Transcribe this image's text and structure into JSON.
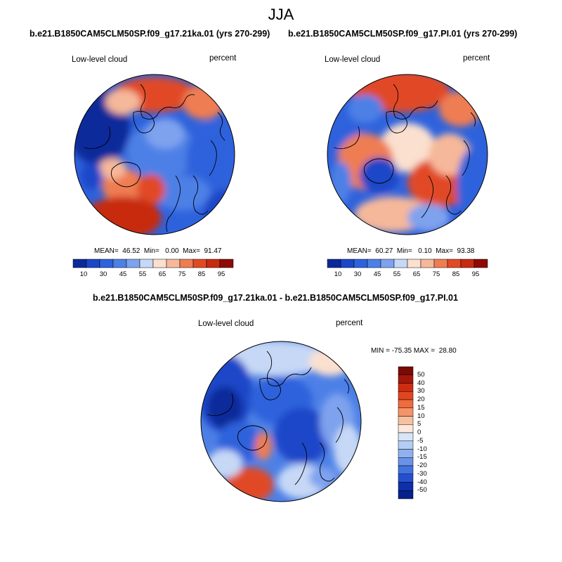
{
  "figure": {
    "season": "JJA",
    "colors": {
      "c10": "#0b2a9a",
      "c20": "#1c46c8",
      "c30": "#2e62dc",
      "c40": "#4d80e6",
      "c50": "#7ea2ee",
      "c55": "#c6d8f6",
      "c60": "#fbe0cf",
      "c70": "#f6b89a",
      "c80": "#ef7d52",
      "c85": "#e14a25",
      "c90": "#c72b10",
      "c95": "#8d0b04"
    }
  },
  "panels": [
    {
      "title": "b.e21.B1850CAM5CLM50SP.f09_g17.21ka.01 (yrs 270-299)",
      "left_label": "Low-level cloud",
      "right_label": "percent",
      "stats": "MEAN=  46.52  Min=   0.00  Max=  91.47",
      "colorbar_ticks": [
        "10",
        "30",
        "45",
        "55",
        "65",
        "75",
        "85",
        "95"
      ]
    },
    {
      "title": "b.e21.B1850CAM5CLM50SP.f09_g17.PI.01 (yrs 270-299)",
      "left_label": "Low-level cloud",
      "right_label": "percent",
      "stats": "MEAN=  60.27  Min=   0.10  Max=  93.38",
      "colorbar_ticks": [
        "10",
        "30",
        "45",
        "55",
        "65",
        "75",
        "85",
        "95"
      ]
    },
    {
      "title": "b.e21.B1850CAM5CLM50SP.f09_g17.21ka.01 - b.e21.B1850CAM5CLM50SP.f09_g17.PI.01",
      "left_label": "Low-level cloud",
      "right_label": "percent",
      "stats": "MIN = -75.35 MAX =  28.80",
      "colorbar_ticks": [
        "50",
        "40",
        "30",
        "20",
        "15",
        "10",
        "5",
        "0",
        "-5",
        "-10",
        "-15",
        "-20",
        "-30",
        "-40",
        "-50"
      ]
    }
  ]
}
